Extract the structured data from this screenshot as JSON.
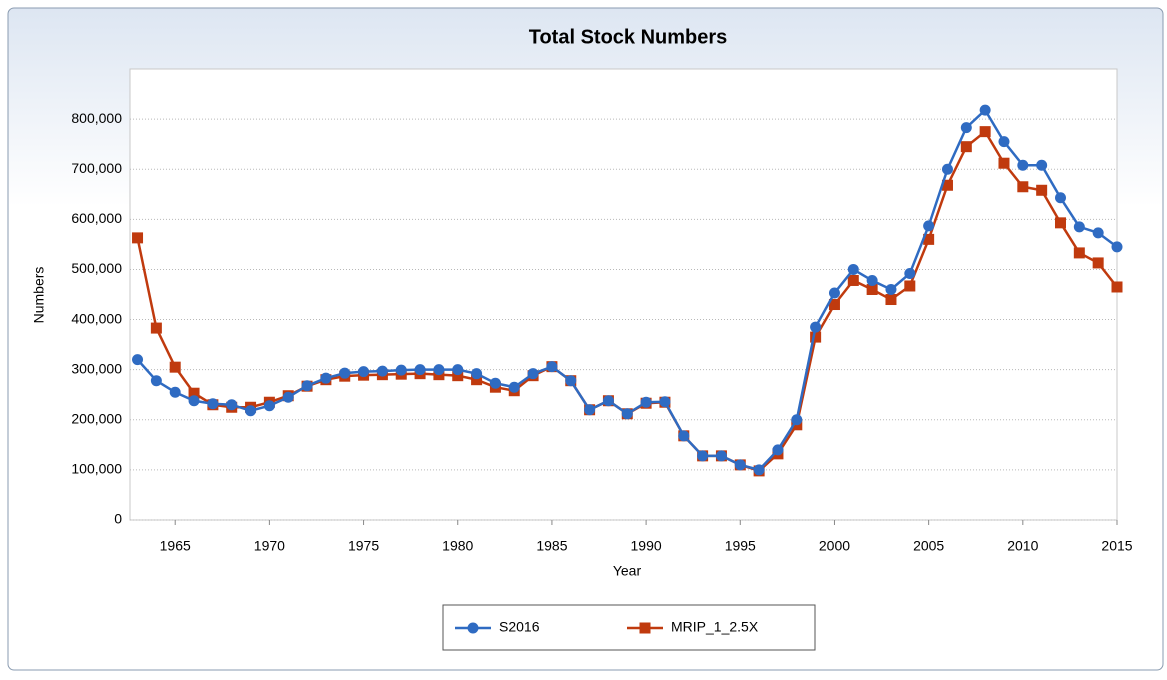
{
  "chart_data": {
    "type": "line",
    "title": "Total Stock Numbers",
    "x_label": "Year",
    "y_label": "Numbers",
    "x": [
      1963,
      1964,
      1965,
      1966,
      1967,
      1968,
      1969,
      1970,
      1971,
      1972,
      1973,
      1974,
      1975,
      1976,
      1977,
      1978,
      1979,
      1980,
      1981,
      1982,
      1983,
      1984,
      1985,
      1986,
      1987,
      1988,
      1989,
      1990,
      1991,
      1992,
      1993,
      1994,
      1995,
      1996,
      1997,
      1998,
      1999,
      2000,
      2001,
      2002,
      2003,
      2004,
      2005,
      2006,
      2007,
      2008,
      2009,
      2010,
      2011,
      2012,
      2013,
      2014,
      2015
    ],
    "series": [
      {
        "name": "S2016",
        "color": "#2f6bc2",
        "marker": "circle",
        "values": [
          320000,
          278000,
          255000,
          238000,
          232000,
          230000,
          218000,
          228000,
          245000,
          268000,
          283000,
          293000,
          296000,
          297000,
          299000,
          300000,
          300000,
          300000,
          292000,
          273000,
          265000,
          292000,
          306000,
          278000,
          220000,
          238000,
          212000,
          235000,
          236000,
          168000,
          128000,
          128000,
          110000,
          100000,
          140000,
          200000,
          385000,
          453000,
          500000,
          478000,
          460000,
          492000,
          587000,
          700000,
          783000,
          818000,
          755000,
          708000,
          708000,
          643000,
          585000,
          573000,
          545000
        ]
      },
      {
        "name": "MRIP_1_2.5X",
        "color": "#c03a0e",
        "marker": "square",
        "values": [
          563000,
          383000,
          305000,
          253000,
          230000,
          225000,
          225000,
          235000,
          248000,
          267000,
          280000,
          287000,
          289000,
          290000,
          291000,
          292000,
          290000,
          288000,
          280000,
          265000,
          258000,
          288000,
          306000,
          278000,
          220000,
          238000,
          212000,
          233000,
          235000,
          168000,
          128000,
          128000,
          110000,
          98000,
          132000,
          190000,
          365000,
          430000,
          478000,
          460000,
          440000,
          467000,
          560000,
          668000,
          745000,
          775000,
          712000,
          665000,
          658000,
          593000,
          533000,
          513000,
          465000
        ]
      }
    ],
    "xlim": [
      1962.6,
      2015
    ],
    "xticks": [
      1965,
      1970,
      1975,
      1980,
      1985,
      1990,
      1995,
      2000,
      2005,
      2010,
      2015
    ],
    "ylim": [
      0,
      900000
    ],
    "yticks": [
      0,
      {
        "value": 100000,
        "label": "100,000"
      },
      {
        "value": 200000,
        "label": "200,000"
      },
      {
        "value": 300000,
        "label": "300,000"
      },
      {
        "value": 400000,
        "label": "400,000"
      },
      {
        "value": 500000,
        "label": "500,000"
      },
      {
        "value": 600000,
        "label": "600,000"
      },
      {
        "value": 700000,
        "label": "700,000"
      },
      {
        "value": 800000,
        "label": "800,000"
      }
    ],
    "grid": true,
    "legend": "bottom"
  }
}
